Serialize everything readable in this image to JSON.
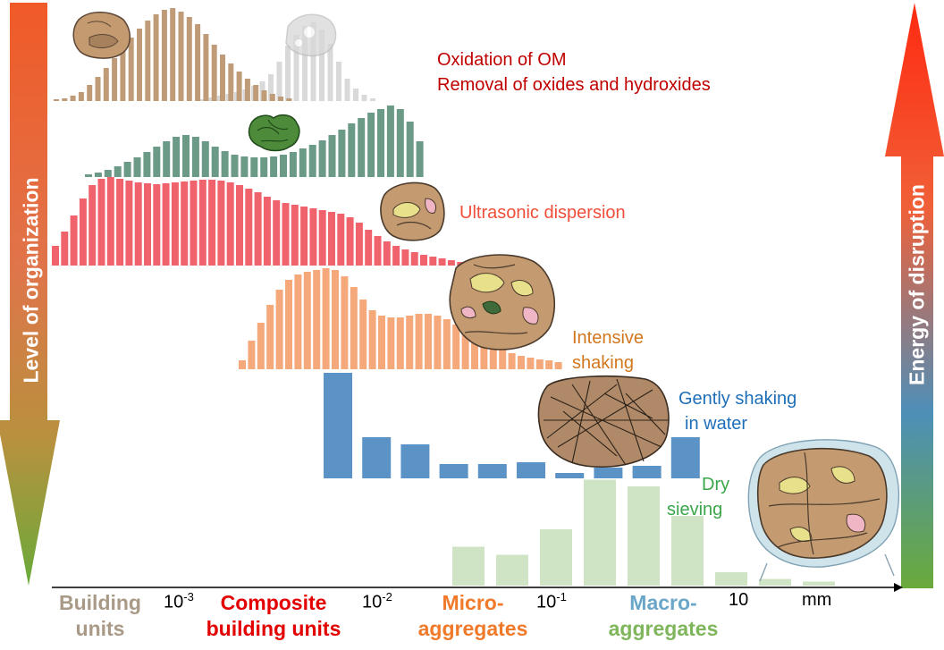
{
  "colors": {
    "oxidation": "#bf9b78",
    "oxidation_ghost": "#d9d9d9",
    "ultrasonic_green": "#6b9a87",
    "ultrasonic": "#f0636c",
    "intensive": "#f5a87a",
    "gently": "#5b93c7",
    "dry": "#cfe4c4",
    "oxidation_text": "#c00000",
    "ultrasonic_text": "#f04e3a",
    "intensive_text": "#d2771e",
    "gently_text": "#1e6fb8",
    "dry_text": "#3aa64a",
    "cat_building": "#a89a86",
    "cat_composite": "#e30000",
    "cat_micro": "#f07a2a",
    "cat_macro": "#6aa6c8",
    "cat_macro_tail": "#7fb65c"
  },
  "left_axis": {
    "label": "Level of organization"
  },
  "right_axis": {
    "label": "Energy of disruption"
  },
  "x_axis": {
    "ticks": [
      {
        "base": "10",
        "exp": "-3"
      },
      {
        "base": "10",
        "exp": "-2"
      },
      {
        "base": "10",
        "exp": "-1"
      },
      {
        "base": "10",
        "exp": ""
      },
      {
        "base": "mm",
        "exp": ""
      }
    ]
  },
  "categories": {
    "building": {
      "line1": "Building",
      "line2": "units"
    },
    "composite": {
      "line1": "Composite",
      "line2": "building units"
    },
    "micro": {
      "line1": "Micro-",
      "line2": "aggregates"
    },
    "macro": {
      "line1": "Macro-",
      "line2": "aggregates"
    }
  },
  "labels": {
    "oxidation_1": "Oxidation of OM",
    "oxidation_2": "Removal of oxides and hydroxides",
    "ultrasonic": "Ultrasonic dispersion",
    "intensive_1": "Intensive",
    "intensive_2": "shaking",
    "gently_1": "Gently shaking",
    "gently_2": "in water",
    "dry_1": "Dry",
    "dry_2": "sieving"
  },
  "chart_data": [
    {
      "type": "bar",
      "name_ref": "oxidation",
      "values": [
        2,
        3,
        6,
        10,
        18,
        27,
        37,
        48,
        60,
        71,
        81,
        90,
        97,
        102,
        104,
        100,
        94,
        86,
        75,
        63,
        52,
        42,
        33,
        25,
        18,
        12,
        8,
        5,
        3
      ],
      "ghost_values": [
        2,
        4,
        6,
        8,
        10,
        13,
        17,
        22,
        30,
        44,
        62,
        74,
        84,
        88,
        80,
        64,
        44,
        25,
        14,
        7,
        3
      ]
    },
    {
      "type": "bar",
      "name_ref": "ultrasonic_green",
      "values": [
        3,
        5,
        8,
        12,
        17,
        22,
        28,
        34,
        40,
        45,
        47,
        45,
        40,
        34,
        29,
        25,
        23,
        22,
        22,
        23,
        25,
        28,
        32,
        36,
        41,
        47,
        53,
        60,
        66,
        72,
        76,
        80,
        76,
        62,
        40
      ]
    },
    {
      "type": "bar",
      "name_ref": "ultrasonic",
      "values": [
        22,
        38,
        56,
        75,
        90,
        97,
        99,
        97,
        95,
        93,
        92,
        91,
        92,
        93,
        94,
        95,
        96,
        96,
        95,
        93,
        90,
        86,
        82,
        77,
        73,
        70,
        68,
        66,
        64,
        62,
        60,
        58,
        54,
        48,
        40,
        33,
        27,
        22,
        18,
        15,
        12,
        10,
        8,
        6,
        4
      ]
    },
    {
      "type": "bar",
      "name_ref": "intensive",
      "values": [
        10,
        32,
        52,
        72,
        89,
        100,
        106,
        109,
        111,
        113,
        111,
        104,
        92,
        78,
        66,
        60,
        58,
        58,
        60,
        62,
        62,
        60,
        56,
        50,
        44,
        37,
        31,
        26,
        22,
        18,
        15,
        13,
        11,
        10,
        8
      ]
    },
    {
      "type": "bar",
      "name_ref": "gently",
      "values": [
        118,
        46,
        38,
        16,
        16,
        18,
        6,
        12,
        14,
        46
      ]
    },
    {
      "type": "bar",
      "name_ref": "dry",
      "values": [
        58,
        46,
        84,
        158,
        148,
        104,
        20,
        10,
        6
      ]
    }
  ]
}
